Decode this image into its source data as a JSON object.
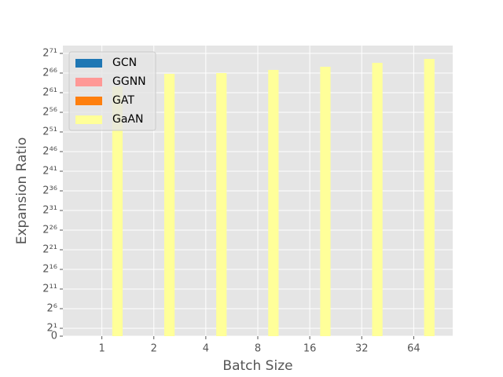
{
  "chart_data": {
    "type": "bar",
    "xlabel": "Batch Size",
    "ylabel": "Expansion Ratio",
    "categories": [
      "1",
      "2",
      "4",
      "8",
      "16",
      "32",
      "64"
    ],
    "series": [
      {
        "name": "GCN",
        "color": "#1f77b4",
        "values": [
          0,
          0,
          0,
          0,
          0,
          0,
          0
        ]
      },
      {
        "name": "GGNN",
        "color": "#ff9896",
        "values": [
          0,
          0,
          0,
          0,
          0,
          0,
          0
        ]
      },
      {
        "name": "GAT",
        "color": "#ff7f0e",
        "values": [
          0,
          0,
          0,
          0,
          0,
          0,
          0
        ]
      },
      {
        "name": "GaAN",
        "color": "#ffff99",
        "values": [
          6.99e+18,
          6.42e+19,
          7.38e+19,
          1.285e+20,
          2.237e+20,
          4.47e+20,
          8.95e+20
        ]
      }
    ],
    "yscale": "symlog",
    "ybase": 2,
    "ylim": [
      0,
      9.44473296573929e+21
    ],
    "yticks": [
      0,
      {
        "value": 2,
        "label": "2¹"
      },
      {
        "value": 64,
        "label": "2⁶"
      },
      {
        "value": 2048,
        "label": "2¹¹"
      },
      {
        "value": 65536,
        "label": "2¹⁶"
      },
      {
        "value": 2097152,
        "label": "2²¹"
      },
      {
        "value": 67108864,
        "label": "2²⁶"
      },
      {
        "value": 2147483648,
        "label": "2³¹"
      },
      {
        "value": 68719476736,
        "label": "2³⁶"
      },
      {
        "value": 2199023255552,
        "label": "2⁴¹"
      },
      {
        "value": 70368744177664,
        "label": "2⁴⁶"
      },
      {
        "value": 2251799813685248,
        "label": "2⁵¹"
      },
      {
        "value": 72057594037927936,
        "label": "2⁵⁶"
      },
      {
        "value": 2305843009213693952,
        "label": "2⁶¹"
      },
      {
        "value": 73786976294838206464,
        "label": "2⁶⁶"
      },
      {
        "value": 2.3611832414348226e+21,
        "label": "2⁷¹"
      }
    ],
    "grid": true,
    "legend": "upper left"
  }
}
